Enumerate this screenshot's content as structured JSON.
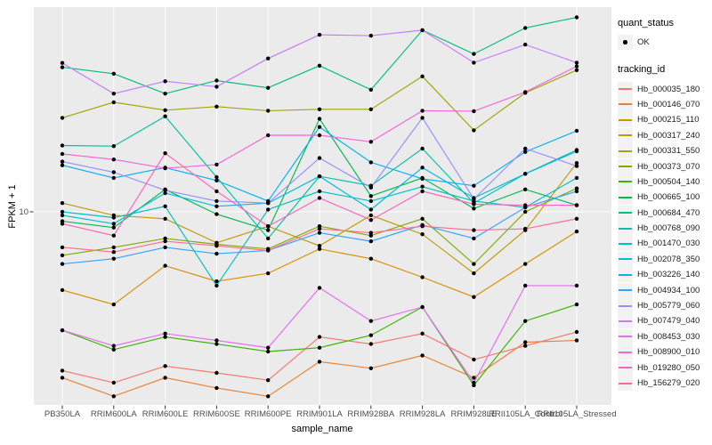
{
  "chart_data": {
    "type": "line",
    "title": "",
    "xlabel": "sample_name",
    "ylabel": "FPKM + 1",
    "y_scale": "log10",
    "y_tick_labels": [
      "10"
    ],
    "ylim": [
      1.8,
      60
    ],
    "grid": "white major gridlines on grey panel",
    "legend_position": "right",
    "point_shape": "filled-circle",
    "x_categories": [
      "PB350LA",
      "RRIM600LA",
      "RRIM600LE",
      "RRIM600SE",
      "RRIM600PE",
      "RRIM901LA",
      "RRIM928BA",
      "RRIM928LA",
      "RRIM928LE",
      "RRII105LA_Control",
      "RRII105LA_Stressed"
    ],
    "series": [
      {
        "name": "Hb_000035_180",
        "color": "#F8766D",
        "values": [
          2.45,
          2.2,
          2.55,
          2.4,
          2.25,
          3.3,
          3.1,
          3.4,
          2.7,
          3.05,
          3.45
        ]
      },
      {
        "name": "Hb_000146_070",
        "color": "#EA8331",
        "values": [
          2.3,
          1.95,
          2.3,
          2.1,
          1.95,
          2.65,
          2.5,
          2.8,
          2.3,
          3.15,
          3.2
        ]
      },
      {
        "name": "Hb_000215_110",
        "color": "#D89000",
        "values": [
          5.0,
          4.4,
          6.2,
          5.4,
          5.8,
          7.2,
          6.6,
          5.6,
          4.7,
          6.3,
          8.4
        ]
      },
      {
        "name": "Hb_000317_240",
        "color": "#C09B00",
        "values": [
          10.8,
          9.7,
          9.4,
          7.6,
          8.8,
          7.4,
          9.7,
          8.2,
          5.8,
          8.5,
          15.4
        ]
      },
      {
        "name": "Hb_000331_550",
        "color": "#A3A500",
        "values": [
          23.0,
          26.4,
          24.6,
          25.4,
          24.5,
          24.8,
          24.8,
          33.2,
          20.6,
          28.7,
          35.1
        ]
      },
      {
        "name": "Hb_000373_070",
        "color": "#7CAE00",
        "values": [
          6.8,
          7.3,
          7.9,
          7.5,
          7.2,
          8.8,
          8.1,
          9.4,
          6.3,
          10.0,
          12.3
        ]
      },
      {
        "name": "Hb_000504_140",
        "color": "#39B600",
        "values": [
          3.5,
          2.95,
          3.3,
          3.1,
          2.9,
          3.0,
          3.35,
          4.3,
          2.15,
          3.8,
          4.4
        ]
      },
      {
        "name": "Hb_000665_100",
        "color": "#00BB4E",
        "values": [
          9.2,
          8.7,
          12.2,
          9.8,
          8.5,
          22.8,
          11.5,
          13.5,
          10.3,
          12.2,
          10.6
        ]
      },
      {
        "name": "Hb_000684_470",
        "color": "#00BF7D",
        "values": [
          36.0,
          34.0,
          28.5,
          32.0,
          30.0,
          36.5,
          29.5,
          50.0,
          40.5,
          51.0,
          56.0
        ]
      },
      {
        "name": "Hb_000768_090",
        "color": "#00C1A3",
        "values": [
          18.0,
          17.9,
          23.3,
          13.6,
          7.9,
          13.7,
          12.6,
          17.5,
          10.8,
          14.0,
          17.3
        ]
      },
      {
        "name": "Hb_001470_030",
        "color": "#00BFC4",
        "values": [
          10.0,
          9.5,
          10.5,
          5.2,
          10.2,
          12.0,
          11.0,
          12.5,
          11.0,
          10.4,
          13.5
        ]
      },
      {
        "name": "Hb_002078_350",
        "color": "#00BAE0",
        "values": [
          9.7,
          9.0,
          11.8,
          10.5,
          10.8,
          13.7,
          10.2,
          14.8,
          11.3,
          14.0,
          17.1
        ]
      },
      {
        "name": "Hb_003226_140",
        "color": "#00B0F6",
        "values": [
          15.1,
          13.5,
          14.8,
          13.2,
          11.0,
          21.2,
          15.5,
          13.4,
          12.6,
          17.0,
          20.5
        ]
      },
      {
        "name": "Hb_004934_100",
        "color": "#35A2FF",
        "values": [
          6.3,
          6.6,
          7.3,
          6.9,
          7.1,
          8.3,
          7.7,
          8.9,
          7.9,
          10.4,
          12.0
        ]
      },
      {
        "name": "Hb_005779_060",
        "color": "#9590FF",
        "values": [
          15.6,
          14.2,
          12.1,
          11.0,
          10.8,
          16.1,
          12.4,
          23.0,
          11.2,
          17.5,
          15.0
        ]
      },
      {
        "name": "Hb_007479_040",
        "color": "#C77CFF",
        "values": [
          37.4,
          28.5,
          31.8,
          30.3,
          38.9,
          48.0,
          47.6,
          50.0,
          37.5,
          44.0,
          37.5
        ]
      },
      {
        "name": "Hb_008453_030",
        "color": "#E76BF3",
        "values": [
          3.5,
          3.05,
          3.4,
          3.2,
          3.0,
          5.1,
          3.8,
          4.3,
          2.2,
          5.2,
          5.2
        ]
      },
      {
        "name": "Hb_008900_010",
        "color": "#FA62DB",
        "values": [
          16.7,
          15.9,
          14.7,
          15.2,
          19.7,
          19.7,
          18.6,
          24.5,
          24.4,
          28.9,
          36.3
        ]
      },
      {
        "name": "Hb_019280_050",
        "color": "#FF62BC",
        "values": [
          9.0,
          8.1,
          16.8,
          12.0,
          8.8,
          11.3,
          9.3,
          12.0,
          10.7,
          10.6,
          10.6
        ]
      },
      {
        "name": "Hb_156279_020",
        "color": "#FF6A98",
        "values": [
          7.3,
          7.0,
          7.7,
          7.4,
          7.1,
          8.6,
          8.3,
          8.8,
          8.5,
          8.6,
          9.4
        ]
      }
    ],
    "legends": [
      {
        "title": "quant_status",
        "items": [
          {
            "label": "OK",
            "type": "point",
            "color": "#000000"
          }
        ]
      },
      {
        "title": "tracking_id",
        "items_from": "series"
      }
    ]
  },
  "colors": {
    "background": "#FFFFFF",
    "panel": "#EBEBEB",
    "gridline": "#FFFFFF",
    "tick": "#333333",
    "tick_label": "#4D4D4D",
    "legend_key_bg": "#F2F2F2",
    "point": "#000000"
  }
}
